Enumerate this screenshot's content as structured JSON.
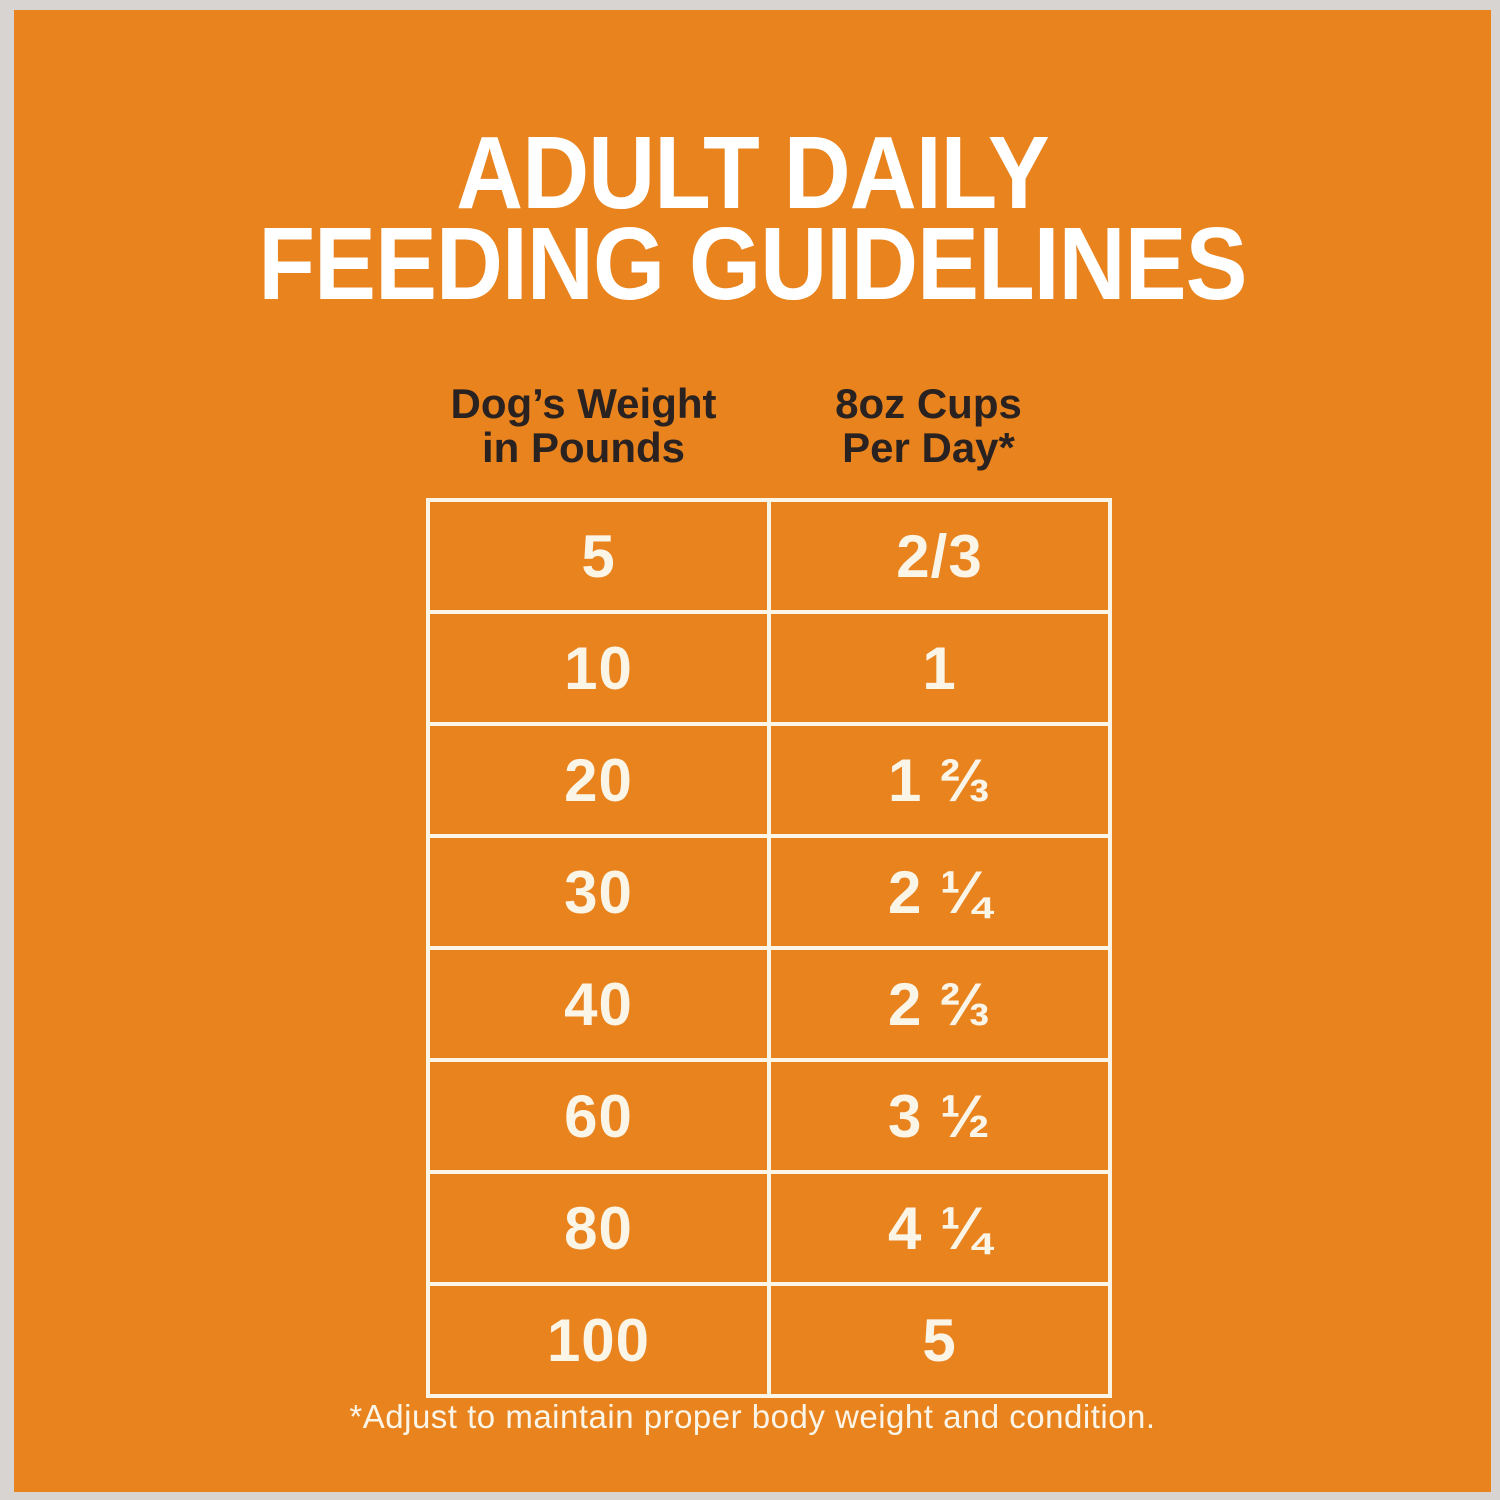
{
  "title": "ADULT DAILY\nFEEDING GUIDELINES",
  "table": {
    "columns": [
      {
        "header": "Dog’s Weight\nin Pounds"
      },
      {
        "header": "8oz Cups\nPer Day*"
      }
    ],
    "rows": [
      {
        "weight": "5",
        "cups": "2/3"
      },
      {
        "weight": "10",
        "cups": "1"
      },
      {
        "weight": "20",
        "cups": "1 ⅔"
      },
      {
        "weight": "30",
        "cups": "2 ¼"
      },
      {
        "weight": "40",
        "cups": "2 ⅔"
      },
      {
        "weight": "60",
        "cups": "3 ½"
      },
      {
        "weight": "80",
        "cups": "4 ¼"
      },
      {
        "weight": "100",
        "cups": "5"
      }
    ]
  },
  "footnote": "*Adjust to maintain proper body weight and condition.",
  "colors": {
    "frame_gray": "#d8d4d2",
    "panel_orange": "#e8831e",
    "title_text": "#ffffff",
    "header_text": "#292220",
    "table_text_and_border": "#fbf5e8"
  },
  "chart_data": {
    "type": "table",
    "title": "ADULT DAILY FEEDING GUIDELINES",
    "columns": [
      "Dog’s Weight in Pounds",
      "8oz Cups Per Day*"
    ],
    "rows": [
      [
        "5",
        "2/3"
      ],
      [
        "10",
        "1"
      ],
      [
        "20",
        "1 ⅔"
      ],
      [
        "30",
        "2 ¼"
      ],
      [
        "40",
        "2 ⅔"
      ],
      [
        "60",
        "3 ½"
      ],
      [
        "80",
        "4 ¼"
      ],
      [
        "100",
        "5"
      ]
    ],
    "footnote": "*Adjust to maintain proper body weight and condition.",
    "layout_hints": {
      "grid": "white cell borders on solid orange panel",
      "outer_frame": "light gray border around orange panel"
    }
  }
}
